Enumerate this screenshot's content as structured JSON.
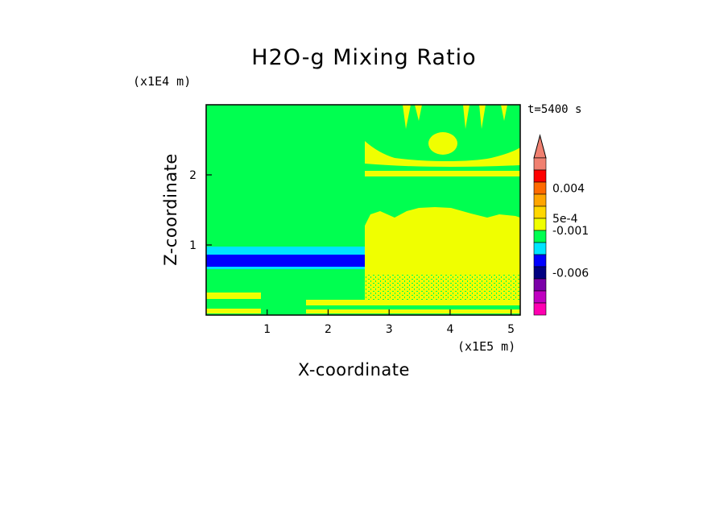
{
  "chart_data": {
    "type": "heatmap",
    "title": "H2O-g Mixing Ratio",
    "xlabel": "X-coordinate",
    "ylabel": "Z-coordinate",
    "x_unit": "(x1E5 m)",
    "y_unit": "(x1E4 m)",
    "time_label": "t=5400 s",
    "x_ticks": [
      "1",
      "2",
      "3",
      "4",
      "5"
    ],
    "y_ticks": [
      "1",
      "2"
    ],
    "xlim": [
      0,
      5.15
    ],
    "ylim": [
      0,
      3.0
    ],
    "colorbar": {
      "labels": [
        "0.004",
        "5e-4",
        "-0.001",
        "-0.006"
      ],
      "colors": [
        "#f08070",
        "#ff0000",
        "#ff6a00",
        "#ffa500",
        "#ffd700",
        "#f0ff00",
        "#00ff50",
        "#00e5ff",
        "#0000ff",
        "#000080",
        "#7b00a8",
        "#c000c0",
        "#ff00b0"
      ]
    },
    "colors": {
      "background_field": "#00ff50",
      "positive_region": "#f0ff00",
      "cyan_band": "#00e5ff",
      "blue_band": "#0000ff"
    }
  }
}
